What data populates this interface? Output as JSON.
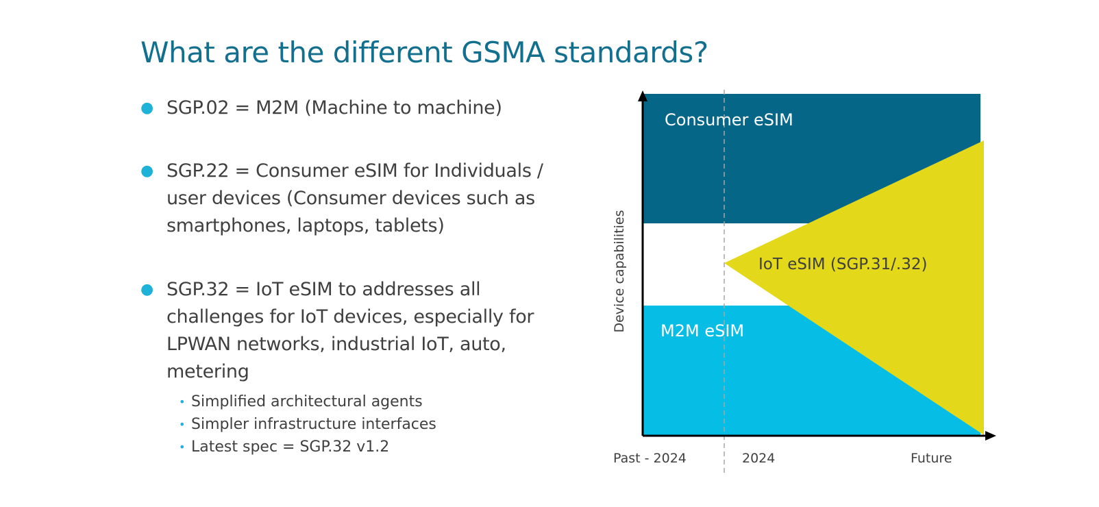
{
  "slide": {
    "title": "What are the different GSMA standards?",
    "bullets": [
      {
        "text": "SGP.02 = M2M (Machine to machine)"
      },
      {
        "text": "SGP.22 = Consumer eSIM for Individuals / user devices (Consumer devices such as smartphones, laptops, tablets)"
      },
      {
        "text": "SGP.32 = IoT eSIM to addresses all challenges for IoT devices, especially for LPWAN networks, industrial IoT, auto, metering"
      }
    ],
    "sub_bullets": [
      "Simplified architectural agents",
      "Simpler infrastructure interfaces",
      "Latest spec = SGP.32 v1.2"
    ]
  },
  "diagram": {
    "y_axis_label": "Device capabilities",
    "x_labels": [
      "Past - 2024",
      "2024",
      "Future"
    ],
    "regions": {
      "consumer": "Consumer eSIM",
      "iot": "IoT eSIM (SGP.31/.32)",
      "m2m": "M2M eSIM"
    },
    "colors": {
      "consumer": "#066688",
      "m2m": "#06bde5",
      "iot": "#e3d91a",
      "title": "#136f8e",
      "bullet_dot": "#1fb2d9",
      "axis": "#000000"
    }
  }
}
